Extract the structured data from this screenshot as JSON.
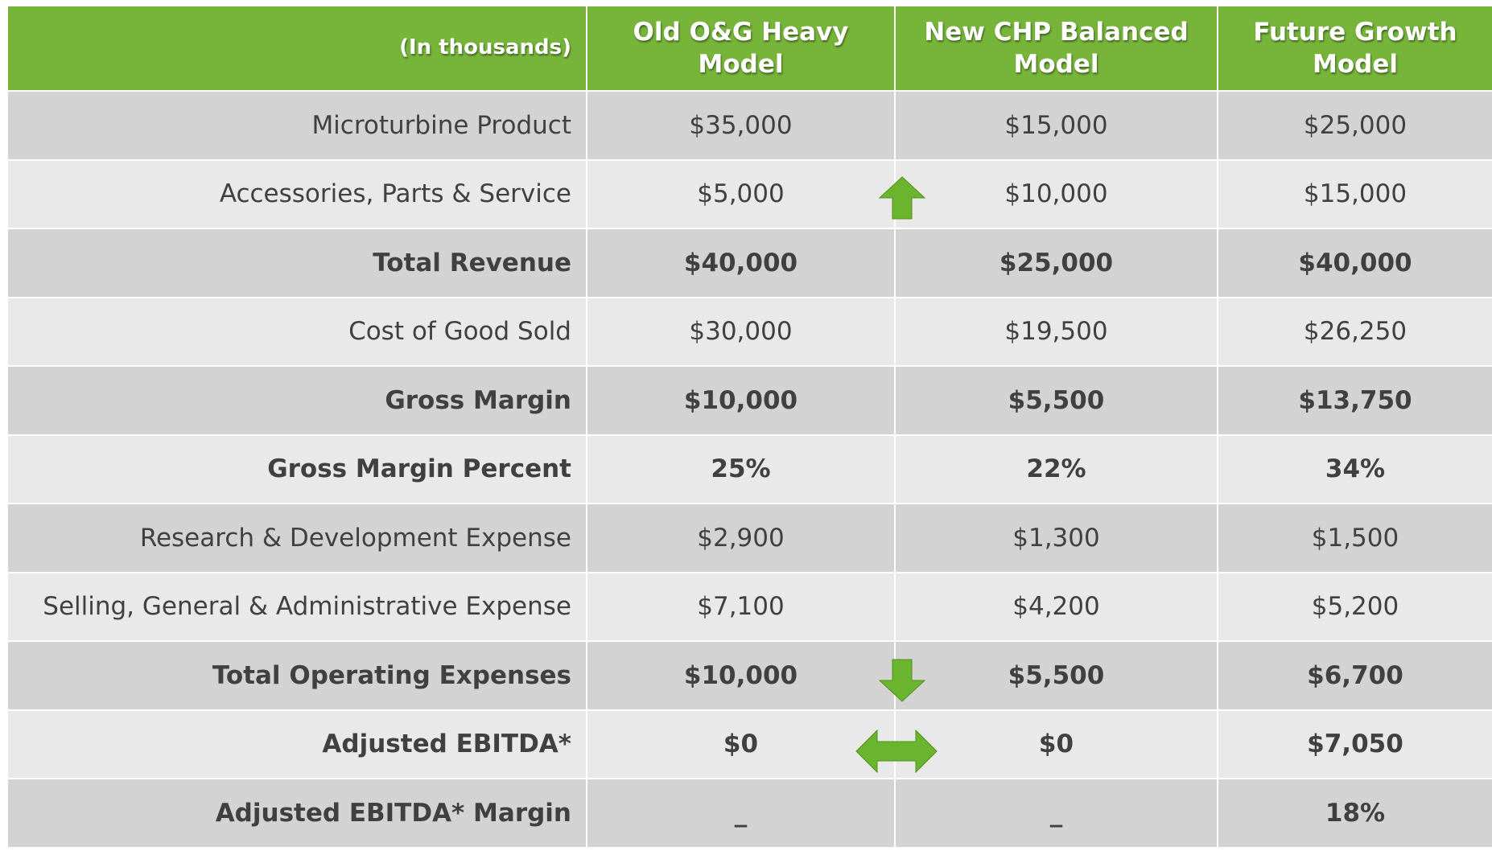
{
  "table": {
    "header": [
      "(In thousands)",
      "Old O&G Heavy Model",
      "New CHP Balanced Model",
      "Future Growth Model"
    ],
    "rows": [
      [
        "Microturbine Product",
        "$35,000",
        "$15,000",
        "$25,000"
      ],
      [
        "Accessories, Parts & Service",
        "$5,000",
        "$10,000",
        "$15,000"
      ],
      [
        "Total Revenue",
        "$40,000",
        "$25,000",
        "$40,000"
      ],
      [
        "Cost of Good Sold",
        "$30,000",
        "$19,500",
        "$26,250"
      ],
      [
        "Gross Margin",
        "$10,000",
        "$5,500",
        "$13,750"
      ],
      [
        "Gross Margin Percent",
        "25%",
        "22%",
        "34%"
      ],
      [
        "Research & Development Expense",
        "$2,900",
        "$1,300",
        "$1,500"
      ],
      [
        "Selling, General & Administrative Expense",
        "$7,100",
        "$4,200",
        "$5,200"
      ],
      [
        "Total Operating Expenses",
        "$10,000",
        "$5,500",
        "$6,700"
      ],
      [
        "Adjusted EBITDA*",
        "$0",
        "$0",
        "$7,050"
      ],
      [
        "Adjusted EBITDA* Margin",
        "_",
        "_",
        "18%"
      ]
    ]
  }
}
